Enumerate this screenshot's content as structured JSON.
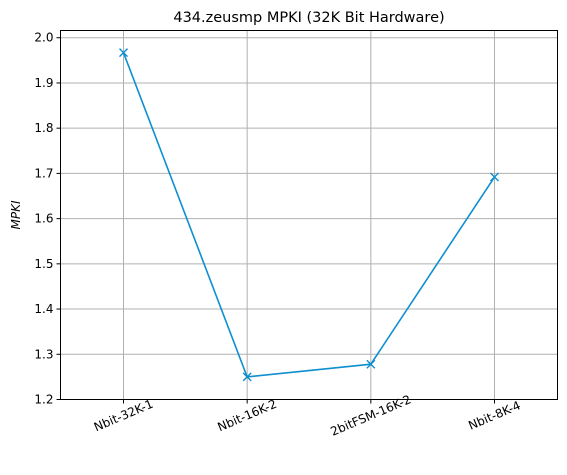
{
  "chart_data": {
    "type": "line",
    "title": "434.zeusmp MPKI (32K Bit Hardware)",
    "xlabel": "",
    "ylabel": "MPKI",
    "categories": [
      "Nbit-32K-1",
      "Nbit-16K-2",
      "2bitFSM-16K-2",
      "Nbit-8K-4"
    ],
    "series": [
      {
        "values": [
          1.967,
          1.25,
          1.278,
          1.692
        ],
        "color": "#0e8fcf",
        "marker": "x"
      }
    ],
    "ylim": [
      1.2,
      2.016
    ],
    "yticks": [
      1.2,
      1.3,
      1.4,
      1.5,
      1.6,
      1.7,
      1.8,
      1.9,
      2.0
    ],
    "ytick_labels": [
      "1.2",
      "1.3",
      "1.4",
      "1.5",
      "1.6",
      "1.7",
      "1.8",
      "1.9",
      "2.0"
    ],
    "grid": true,
    "legend": "none"
  }
}
